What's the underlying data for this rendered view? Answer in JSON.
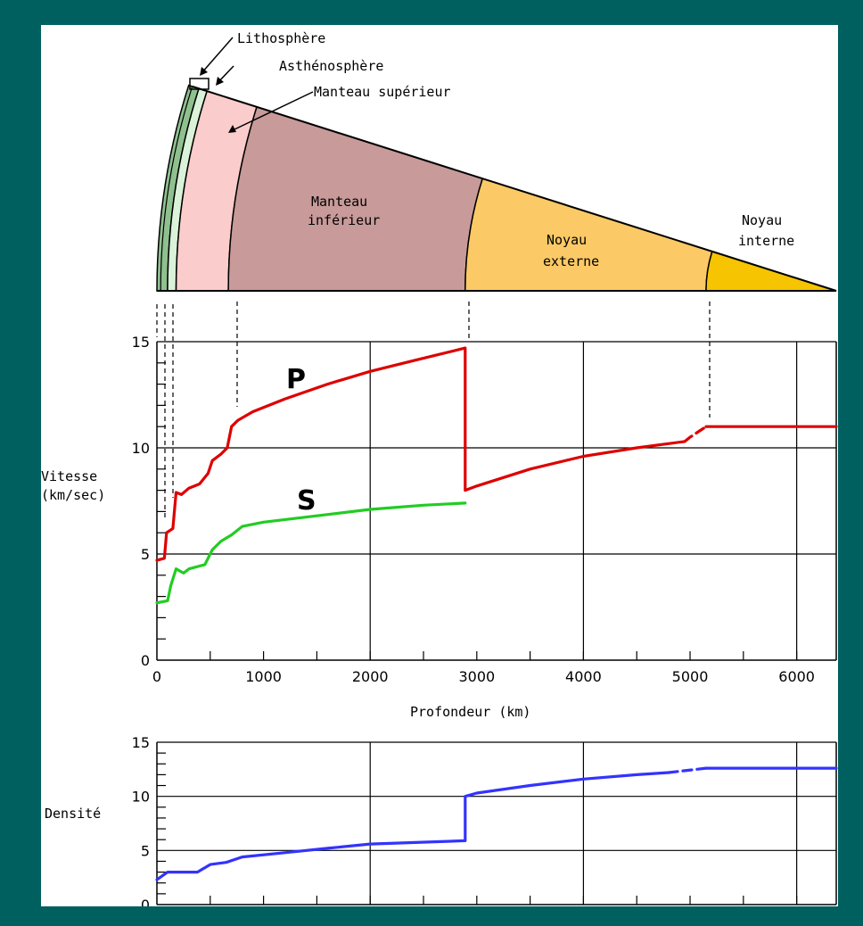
{
  "diagram": {
    "labels": {
      "lithosphere": "Lithosphère",
      "asthenosphere": "Asthénosphère",
      "upper_mantle": "Manteau supérieur",
      "lower_mantle_l1": "Manteau",
      "lower_mantle_l2": "inférieur",
      "outer_core_l1": "Noyau",
      "outer_core_l2": "externe",
      "inner_core_l1": "Noyau",
      "inner_core_l2": "interne"
    },
    "colors": {
      "lithosphere": "#8fc08f",
      "asthenosphere": "#d9f2d9",
      "upper_mantle": "#fbcccc",
      "lower_mantle": "#c89a9a",
      "outer_core": "#fbc966",
      "inner_core": "#f6c400"
    }
  },
  "chart_data": [
    {
      "type": "line",
      "ylabel": "Vitesse\n(km/sec)",
      "xlabel": "Profondeur (km)",
      "xlim": [
        0,
        6371
      ],
      "ylim": [
        0,
        15
      ],
      "x_ticks": [
        "0",
        "1000",
        "2000",
        "3000",
        "4000",
        "5000",
        "6000"
      ],
      "y_ticks": [
        "0",
        "5",
        "10",
        "15"
      ],
      "grid": true,
      "series": [
        {
          "name": "P",
          "color": "#dd0000",
          "points": [
            [
              0,
              4.7
            ],
            [
              70,
              4.8
            ],
            [
              90,
              6.0
            ],
            [
              150,
              6.2
            ],
            [
              180,
              7.9
            ],
            [
              230,
              7.8
            ],
            [
              300,
              8.1
            ],
            [
              400,
              8.3
            ],
            [
              480,
              8.8
            ],
            [
              520,
              9.4
            ],
            [
              600,
              9.7
            ],
            [
              660,
              10.0
            ],
            [
              700,
              11.0
            ],
            [
              760,
              11.3
            ],
            [
              900,
              11.7
            ],
            [
              1200,
              12.3
            ],
            [
              1600,
              13.0
            ],
            [
              2000,
              13.6
            ],
            [
              2400,
              14.1
            ],
            [
              2891,
              14.7
            ],
            [
              2891,
              8.0
            ],
            [
              3000,
              8.2
            ],
            [
              3500,
              9.0
            ],
            [
              4000,
              9.6
            ],
            [
              4500,
              10.0
            ],
            [
              4950,
              10.3
            ]
          ]
        },
        {
          "name": "P",
          "color": "#dd0000",
          "dashed": true,
          "points": [
            [
              4950,
              10.3
            ],
            [
              5000,
              10.5
            ],
            [
              5150,
              11.0
            ]
          ]
        },
        {
          "name": "P",
          "color": "#dd0000",
          "points": [
            [
              5150,
              11.0
            ],
            [
              6371,
              11.0
            ]
          ]
        },
        {
          "name": "S",
          "color": "#22cc22",
          "points": [
            [
              0,
              2.7
            ],
            [
              100,
              2.8
            ],
            [
              130,
              3.5
            ],
            [
              180,
              4.3
            ],
            [
              250,
              4.1
            ],
            [
              300,
              4.3
            ],
            [
              450,
              4.5
            ],
            [
              520,
              5.2
            ],
            [
              600,
              5.6
            ],
            [
              700,
              5.9
            ],
            [
              800,
              6.3
            ],
            [
              1000,
              6.5
            ],
            [
              1500,
              6.8
            ],
            [
              2000,
              7.1
            ],
            [
              2500,
              7.3
            ],
            [
              2891,
              7.4
            ]
          ]
        }
      ],
      "annotations": [
        "P",
        "S"
      ],
      "boundaries_km": [
        35,
        100,
        180,
        670,
        2891,
        5150
      ]
    },
    {
      "type": "line",
      "ylabel": "Densité",
      "xlim": [
        0,
        6371
      ],
      "ylim": [
        0,
        15
      ],
      "y_ticks": [
        "0",
        "5",
        "10",
        "15"
      ],
      "grid": true,
      "series": [
        {
          "name": "Densité",
          "color": "#3333ff",
          "points": [
            [
              0,
              2.3
            ],
            [
              100,
              3.0
            ],
            [
              200,
              3.0
            ],
            [
              380,
              3.0
            ],
            [
              500,
              3.7
            ],
            [
              650,
              3.9
            ],
            [
              800,
              4.4
            ],
            [
              1200,
              4.8
            ],
            [
              1600,
              5.2
            ],
            [
              2000,
              5.6
            ],
            [
              2891,
              5.9
            ],
            [
              2891,
              10.0
            ],
            [
              3000,
              10.3
            ],
            [
              3500,
              11.0
            ],
            [
              4000,
              11.6
            ],
            [
              4500,
              12.0
            ],
            [
              4800,
              12.2
            ]
          ]
        },
        {
          "name": "Densité",
          "color": "#3333ff",
          "dashed": true,
          "points": [
            [
              4800,
              12.2
            ],
            [
              5150,
              12.6
            ]
          ]
        },
        {
          "name": "Densité",
          "color": "#3333ff",
          "points": [
            [
              5150,
              12.6
            ],
            [
              6371,
              12.6
            ]
          ]
        }
      ]
    }
  ]
}
